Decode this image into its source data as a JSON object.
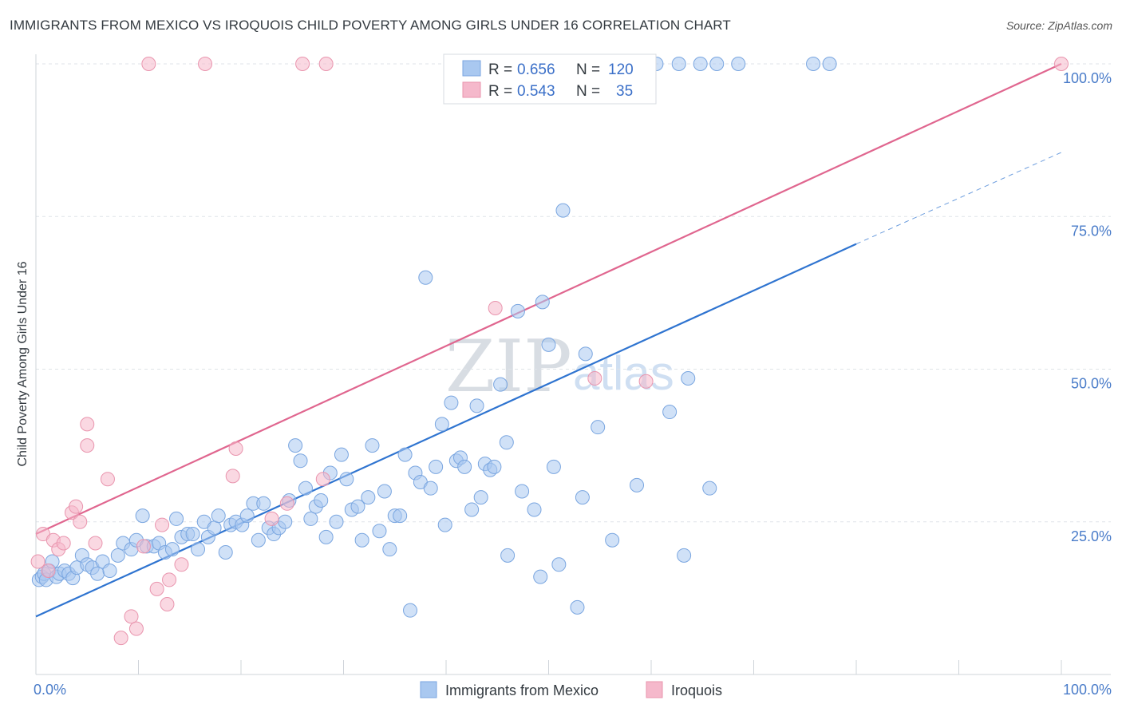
{
  "header": {
    "title": "IMMIGRANTS FROM MEXICO VS IROQUOIS CHILD POVERTY AMONG GIRLS UNDER 16 CORRELATION CHART",
    "source": "Source: ZipAtlas.com"
  },
  "watermark": {
    "zip": "ZIP",
    "atlas": "atlas"
  },
  "legend_box": {
    "rows": [
      {
        "r_label": "R =",
        "r_value": "0.656",
        "n_label": "N =",
        "n_value": "120",
        "color": "#a9c8f0"
      },
      {
        "r_label": "R =",
        "r_value": "0.543",
        "n_label": "N =",
        "n_value": "35",
        "color": "#f5b8cb"
      }
    ]
  },
  "chart_data": {
    "type": "scatter",
    "ylabel": "Child Poverty Among Girls Under 16",
    "xlim": [
      0,
      100
    ],
    "ylim": [
      0,
      100
    ],
    "x_tick_labels": [
      "0.0%",
      "100.0%"
    ],
    "y_tick_labels": [
      "25.0%",
      "50.0%",
      "75.0%",
      "100.0%"
    ],
    "y_ticks": [
      25,
      50,
      75,
      100
    ],
    "grid": true,
    "legend": "bottom-center",
    "series": [
      {
        "name": "Immigrants from Mexico",
        "color": "#a9c8f0",
        "stroke": "#7aa6e0",
        "line_color": "#2f74d0",
        "trend": {
          "x": [
            0,
            80
          ],
          "y": [
            9.5,
            70.5
          ],
          "dashed_to": [
            100,
            85.5
          ]
        },
        "points": [
          [
            0.3,
            15.5
          ],
          [
            0.6,
            16
          ],
          [
            0.8,
            16.5
          ],
          [
            1.0,
            15.5
          ],
          [
            1.3,
            17
          ],
          [
            1.6,
            18.5
          ],
          [
            2.0,
            16
          ],
          [
            2.3,
            16.5
          ],
          [
            2.8,
            17
          ],
          [
            3.2,
            16.5
          ],
          [
            3.6,
            15.8
          ],
          [
            4.0,
            17.5
          ],
          [
            4.5,
            19.5
          ],
          [
            5.0,
            18
          ],
          [
            5.5,
            17.5
          ],
          [
            6.0,
            16.5
          ],
          [
            6.5,
            18.5
          ],
          [
            7.2,
            17
          ],
          [
            8.0,
            19.5
          ],
          [
            8.5,
            21.5
          ],
          [
            9.3,
            20.5
          ],
          [
            9.8,
            22
          ],
          [
            10.4,
            26
          ],
          [
            10.8,
            21
          ],
          [
            11.5,
            21
          ],
          [
            12.0,
            21.5
          ],
          [
            12.6,
            20
          ],
          [
            13.3,
            20.5
          ],
          [
            13.7,
            25.5
          ],
          [
            14.2,
            22.5
          ],
          [
            14.8,
            23
          ],
          [
            15.3,
            23
          ],
          [
            15.8,
            20.5
          ],
          [
            16.4,
            25
          ],
          [
            16.8,
            22.5
          ],
          [
            17.4,
            24
          ],
          [
            17.8,
            26
          ],
          [
            18.5,
            20
          ],
          [
            19.0,
            24.5
          ],
          [
            19.5,
            25
          ],
          [
            20.1,
            24.5
          ],
          [
            20.6,
            26
          ],
          [
            21.2,
            28
          ],
          [
            21.7,
            22
          ],
          [
            22.2,
            28
          ],
          [
            22.7,
            24
          ],
          [
            23.2,
            23
          ],
          [
            23.7,
            24
          ],
          [
            24.3,
            25
          ],
          [
            24.7,
            28.5
          ],
          [
            25.3,
            37.5
          ],
          [
            25.8,
            35
          ],
          [
            26.3,
            30.5
          ],
          [
            26.8,
            25.5
          ],
          [
            27.3,
            27.5
          ],
          [
            27.8,
            28.5
          ],
          [
            28.3,
            22.5
          ],
          [
            28.7,
            33
          ],
          [
            29.3,
            25
          ],
          [
            29.8,
            36
          ],
          [
            30.3,
            32
          ],
          [
            30.8,
            27
          ],
          [
            31.4,
            27.5
          ],
          [
            31.8,
            22
          ],
          [
            32.4,
            29
          ],
          [
            32.8,
            37.5
          ],
          [
            33.5,
            23.5
          ],
          [
            34.0,
            30
          ],
          [
            34.5,
            20.5
          ],
          [
            35.0,
            26
          ],
          [
            35.5,
            26
          ],
          [
            36.0,
            36
          ],
          [
            36.5,
            10.5
          ],
          [
            37.0,
            33
          ],
          [
            37.5,
            31.5
          ],
          [
            38.0,
            65
          ],
          [
            38.5,
            30.5
          ],
          [
            39.0,
            34
          ],
          [
            39.6,
            41
          ],
          [
            39.9,
            24.5
          ],
          [
            40.5,
            44.5
          ],
          [
            41.0,
            35
          ],
          [
            41.4,
            35.5
          ],
          [
            41.8,
            34
          ],
          [
            42.5,
            27
          ],
          [
            43.0,
            44
          ],
          [
            43.4,
            29
          ],
          [
            43.8,
            34.5
          ],
          [
            44.3,
            33.5
          ],
          [
            44.7,
            34
          ],
          [
            45.3,
            47.5
          ],
          [
            45.9,
            38
          ],
          [
            46.0,
            19.5
          ],
          [
            47.0,
            59.5
          ],
          [
            47.4,
            30
          ],
          [
            48.6,
            27
          ],
          [
            49.2,
            16
          ],
          [
            49.4,
            61
          ],
          [
            50.0,
            54
          ],
          [
            50.5,
            34
          ],
          [
            51.0,
            18
          ],
          [
            51.4,
            76
          ],
          [
            52.8,
            11
          ],
          [
            53.3,
            29
          ],
          [
            53.6,
            52.5
          ],
          [
            54.8,
            40.5
          ],
          [
            56.2,
            22
          ],
          [
            58.6,
            31
          ],
          [
            60.5,
            100
          ],
          [
            61.8,
            43
          ],
          [
            62.7,
            100
          ],
          [
            63.2,
            19.5
          ],
          [
            63.6,
            48.5
          ],
          [
            64.8,
            100
          ],
          [
            65.7,
            30.5
          ],
          [
            66.4,
            100
          ],
          [
            68.5,
            100
          ],
          [
            75.8,
            100
          ],
          [
            77.4,
            100
          ],
          [
            53.0,
            100
          ]
        ]
      },
      {
        "name": "Iroquois",
        "color": "#f5b8cb",
        "stroke": "#e995ae",
        "line_color": "#e0668f",
        "trend": {
          "x": [
            0,
            100
          ],
          "y": [
            23,
            100
          ]
        },
        "points": [
          [
            0.2,
            18.5
          ],
          [
            0.7,
            23
          ],
          [
            1.2,
            17
          ],
          [
            1.7,
            22
          ],
          [
            2.2,
            20.5
          ],
          [
            2.7,
            21.5
          ],
          [
            3.5,
            26.5
          ],
          [
            3.9,
            27.5
          ],
          [
            4.3,
            25
          ],
          [
            5.0,
            41
          ],
          [
            5.0,
            37.5
          ],
          [
            5.8,
            21.5
          ],
          [
            7.0,
            32
          ],
          [
            8.3,
            6
          ],
          [
            9.3,
            9.5
          ],
          [
            9.8,
            7.5
          ],
          [
            10.5,
            21
          ],
          [
            11.0,
            100
          ],
          [
            11.8,
            14
          ],
          [
            12.3,
            24.5
          ],
          [
            12.8,
            11.5
          ],
          [
            13.0,
            15.5
          ],
          [
            14.2,
            18
          ],
          [
            16.5,
            100
          ],
          [
            19.2,
            32.5
          ],
          [
            19.5,
            37
          ],
          [
            23.0,
            25.5
          ],
          [
            24.5,
            28
          ],
          [
            26.0,
            100
          ],
          [
            28.0,
            32
          ],
          [
            28.3,
            100
          ],
          [
            44.8,
            60
          ],
          [
            54.5,
            48.5
          ],
          [
            59.5,
            48
          ],
          [
            100,
            100
          ]
        ]
      }
    ]
  }
}
